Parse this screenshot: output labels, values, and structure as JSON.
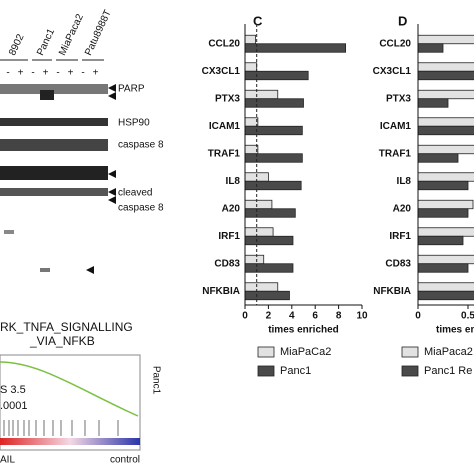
{
  "blot": {
    "lanes": [
      "8902",
      "Panc1",
      "MiaPaca2",
      "Patu8988T"
    ],
    "treatment": [
      "-",
      "+",
      "-",
      "+",
      "-",
      "+",
      "-",
      "+"
    ],
    "labels": [
      "PARP",
      "HSP90",
      "caspase 8",
      "cleaved",
      "caspase 8"
    ]
  },
  "gsea": {
    "title": [
      "RK_TNFA_SIGNALLING",
      "_VIA_NFKB"
    ],
    "stats": [
      "S 3.5",
      ".0001"
    ],
    "side_label": "Panc1",
    "x_labels": [
      "AIL",
      "control"
    ]
  },
  "chart_data": [
    {
      "type": "bar",
      "orientation": "horizontal",
      "panel_label": "C",
      "xlabel": "times enriched",
      "categories": [
        "CCL20",
        "CX3CL1",
        "PTX3",
        "ICAM1",
        "TRAF1",
        "IL8",
        "A20",
        "IRF1",
        "CD83",
        "NFKBIA"
      ],
      "series": [
        {
          "name": "MiaPaCa2",
          "color": "#e2e2e2",
          "values": [
            0.9,
            1.0,
            2.8,
            1.1,
            1.1,
            2.0,
            2.3,
            2.4,
            1.6,
            2.8
          ]
        },
        {
          "name": "Panc1",
          "color": "#4a4a4a",
          "values": [
            8.6,
            5.4,
            5.0,
            4.9,
            4.9,
            4.8,
            4.3,
            4.1,
            4.1,
            3.8
          ]
        }
      ],
      "xlim": [
        0,
        10
      ],
      "xticks": [
        0,
        2,
        4,
        6,
        8,
        10
      ],
      "ref_line": 1
    },
    {
      "type": "bar",
      "orientation": "horizontal",
      "panel_label": "D",
      "xlabel": "times enri",
      "categories": [
        "CCL20",
        "CX3CL1",
        "PTX3",
        "ICAM1",
        "TRAF1",
        "IL8",
        "A20",
        "IRF1",
        "CD83",
        "NFKBIA"
      ],
      "series": [
        {
          "name": "MiaPaca2",
          "color": "#e2e2e2",
          "values": [
            0.7,
            0.7,
            0.7,
            0.7,
            0.7,
            0.7,
            0.55,
            0.7,
            0.7,
            0.7
          ]
        },
        {
          "name": "Panc1 Re",
          "color": "#4a4a4a",
          "values": [
            0.25,
            0.6,
            0.3,
            0.7,
            0.4,
            0.5,
            0.5,
            0.45,
            0.5,
            0.7
          ]
        }
      ],
      "xlim": [
        0,
        1
      ],
      "xticks": [
        0,
        0.5
      ]
    }
  ]
}
